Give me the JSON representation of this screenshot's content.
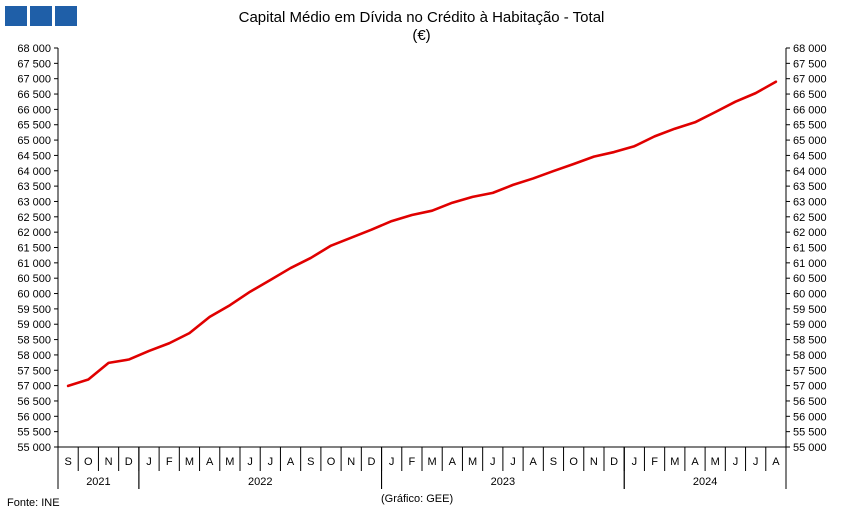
{
  "chart_data": {
    "type": "line",
    "title": "Capital Médio em Dívida no Crédito à Habitação - Total",
    "subtitle": "(€)",
    "ylim": [
      55000,
      68000
    ],
    "y_tick_labels": [
      "55 000",
      "55 500",
      "56 000",
      "56 500",
      "57 000",
      "57 500",
      "58 000",
      "58 500",
      "59 000",
      "59 500",
      "60 000",
      "60 500",
      "61 000",
      "61 500",
      "62 000",
      "62 500",
      "63 000",
      "63 500",
      "64 000",
      "64 500",
      "65 000",
      "65 500",
      "66 000",
      "66 500",
      "67 000",
      "67 500",
      "68 000"
    ],
    "grid": false,
    "categories": [
      "S",
      "O",
      "N",
      "D",
      "J",
      "F",
      "M",
      "A",
      "M",
      "J",
      "J",
      "A",
      "S",
      "O",
      "N",
      "D",
      "J",
      "F",
      "M",
      "A",
      "M",
      "J",
      "J",
      "A",
      "S",
      "O",
      "N",
      "D",
      "J",
      "F",
      "M",
      "A",
      "M",
      "J",
      "J",
      "A"
    ],
    "years": [
      {
        "label": "2021",
        "start": 0,
        "count": 4
      },
      {
        "label": "2022",
        "start": 4,
        "count": 12
      },
      {
        "label": "2023",
        "start": 16,
        "count": 12
      },
      {
        "label": "2024",
        "start": 28,
        "count": 8
      }
    ],
    "series": [
      {
        "color": "#e00000",
        "values": [
          56990,
          57200,
          57740,
          57850,
          58130,
          58380,
          58710,
          59240,
          59620,
          60060,
          60440,
          60830,
          61160,
          61560,
          61820,
          62080,
          62360,
          62560,
          62700,
          62960,
          63150,
          63280,
          63540,
          63750,
          63990,
          64220,
          64460,
          64610,
          64800,
          65120,
          65370,
          65580,
          65910,
          66250,
          66530,
          66900
        ]
      }
    ]
  },
  "source_label": "Fonte: INE",
  "credit_label": "(Gráfico: GEE)",
  "logo_colors": [
    "#1f5fa8",
    "#1f5fa8",
    "#1f5fa8"
  ]
}
